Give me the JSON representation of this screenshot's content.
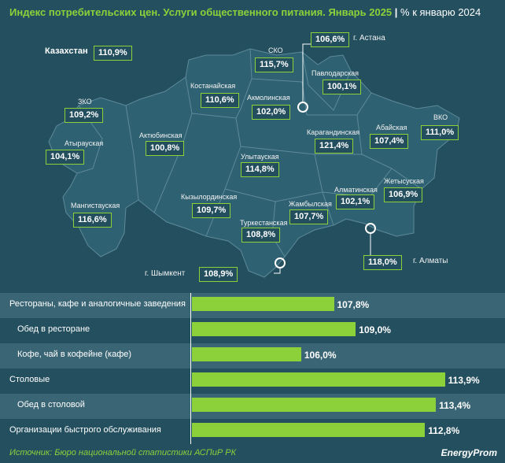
{
  "header": {
    "title": "Индекс потребительских цен. Услуги общественного питания. Январь 2025",
    "separator": "|",
    "unit": "% к январю 2024"
  },
  "kazakhstan": {
    "label": "Казахстан",
    "value": "110,9%"
  },
  "regions": [
    {
      "name": "СКО",
      "value": "115,7%"
    },
    {
      "name": "г. Астана",
      "value": "106,6%"
    },
    {
      "name": "Павлодарская",
      "value": "100,1%"
    },
    {
      "name": "Костанайская",
      "value": "110,6%"
    },
    {
      "name": "Акмолинская",
      "value": "102,0%"
    },
    {
      "name": "ЗКО",
      "value": "109,2%"
    },
    {
      "name": "ВКО",
      "value": "111,0%"
    },
    {
      "name": "Абайская",
      "value": "107,4%"
    },
    {
      "name": "Актюбинская",
      "value": "100,8%"
    },
    {
      "name": "Карагандинская",
      "value": "121,4%"
    },
    {
      "name": "Атырауская",
      "value": "104,1%"
    },
    {
      "name": "Улытауская",
      "value": "114,8%"
    },
    {
      "name": "Жетысуская",
      "value": "106,9%"
    },
    {
      "name": "Алматинская",
      "value": "102,1%"
    },
    {
      "name": "Кызылординская",
      "value": "109,7%"
    },
    {
      "name": "Мангистауская",
      "value": "116,6%"
    },
    {
      "name": "Жамбылская",
      "value": "107,7%"
    },
    {
      "name": "Туркестанская",
      "value": "108,8%"
    },
    {
      "name": "г. Алматы",
      "value": "118,0%"
    },
    {
      "name": "г. Шымкент",
      "value": "108,9%"
    }
  ],
  "chart_data": {
    "type": "bar",
    "categories": [
      "Рестораны, кафе и аналогичные заведения",
      "Обед в ресторане",
      "Кофе, чай в кофейне (кафе)",
      "Столовые",
      "Обед в столовой",
      "Организации быстрого обслуживания"
    ],
    "values": [
      107.8,
      109.0,
      106.0,
      113.9,
      113.4,
      112.8
    ],
    "value_labels": [
      "107,8%",
      "109,0%",
      "106,0%",
      "113,9%",
      "113,4%",
      "112,8%"
    ],
    "xlim": [
      100,
      114
    ],
    "bar_color": "#8dd13a"
  },
  "footer": {
    "source": "Источник: Бюро национальной статистики АСПиР РК",
    "brand": "EnergyProm"
  },
  "colors": {
    "background": "#234f5f",
    "map": "#2e6172",
    "accent": "#8dd13a"
  }
}
